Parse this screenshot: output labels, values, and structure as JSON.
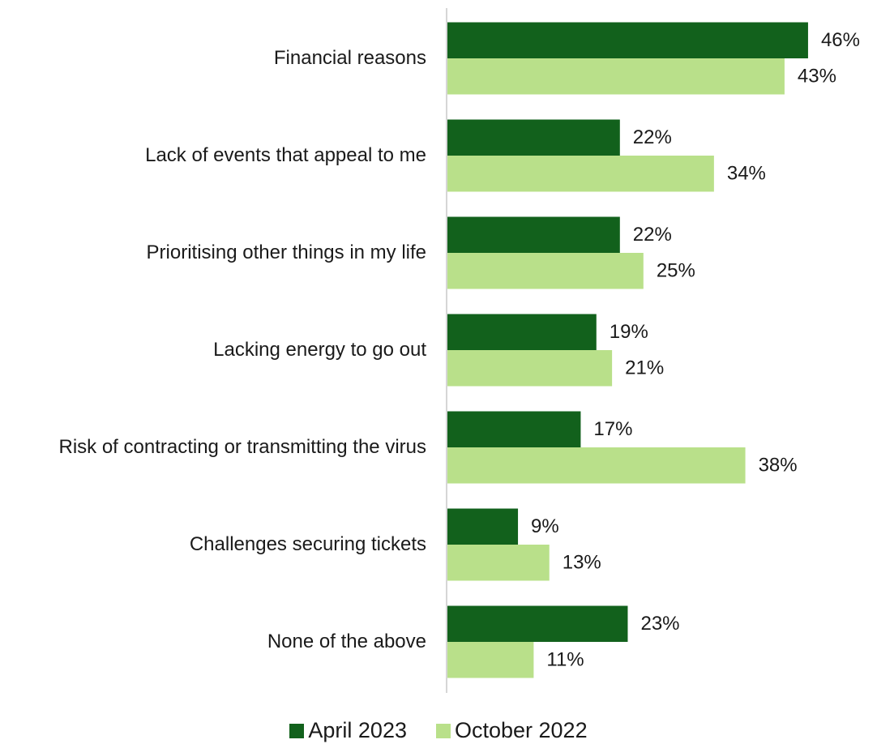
{
  "chart_data": {
    "type": "bar",
    "orientation": "horizontal",
    "categories": [
      "Financial reasons",
      "Lack of events that appeal to me",
      "Prioritising other things in my life",
      "Lacking energy to go out",
      "Risk of contracting or transmitting the virus",
      "Challenges securing tickets",
      "None of the above"
    ],
    "series": [
      {
        "name": "April 2023",
        "color": "#12611c",
        "values": [
          46,
          22,
          22,
          19,
          17,
          9,
          23
        ],
        "value_labels": [
          "46%",
          "22%",
          "22%",
          "19%",
          "17%",
          "9%",
          "23%"
        ]
      },
      {
        "name": "October 2022",
        "color": "#b9e08a",
        "values": [
          43,
          34,
          25,
          21,
          38,
          13,
          11
        ],
        "value_labels": [
          "43%",
          "34%",
          "25%",
          "21%",
          "38%",
          "13%",
          "11%"
        ]
      }
    ],
    "xlim": [
      0,
      55
    ],
    "legend": "bottom"
  }
}
